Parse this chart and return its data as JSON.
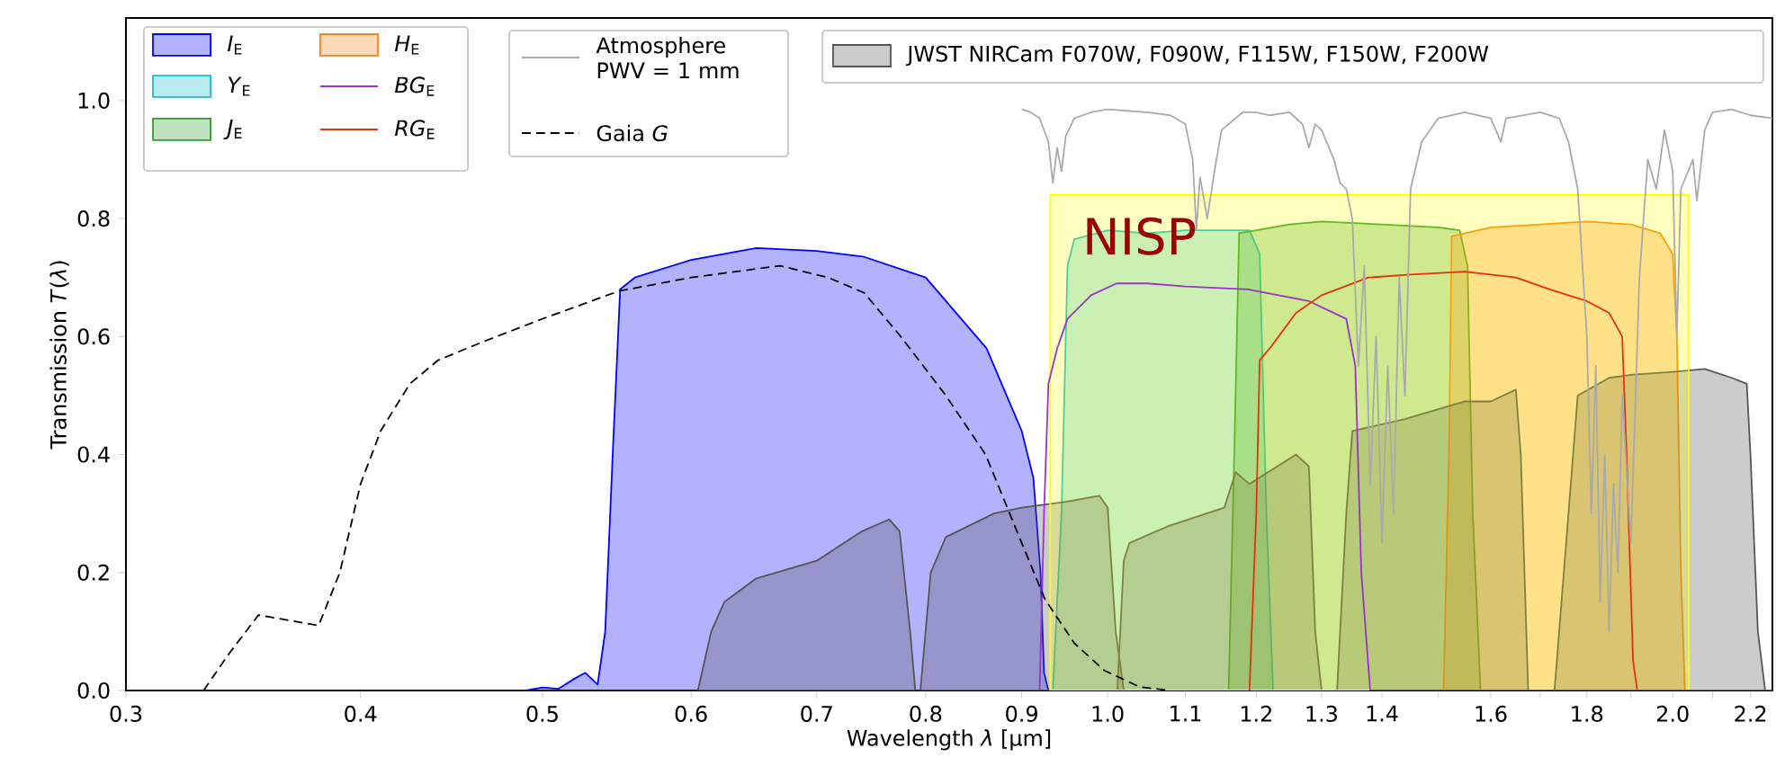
{
  "chart_data": {
    "type": "line",
    "xlabel": "Wavelength  *λ* [μm]",
    "ylabel": "Transmission  *T*(*λ*)",
    "log": "x",
    "legend": "top",
    "xlim": [
      0.3,
      2.26
    ],
    "ylim": [
      0,
      1.14
    ],
    "xticks": [
      0.3,
      0.4,
      0.5,
      0.6,
      0.7,
      0.8,
      0.9,
      {
        "value": 1.0,
        "label": "1.0"
      },
      1.1,
      1.2,
      1.3,
      1.4,
      {
        "value": 1.5,
        "label": null
      },
      1.6,
      {
        "value": 1.7,
        "label": null
      },
      1.8,
      {
        "value": 1.9,
        "label": null
      },
      {
        "value": 2.0,
        "label": "2.0"
      },
      {
        "value": 2.1,
        "label": null
      },
      2.2
    ],
    "yticks": [
      {
        "value": 0.0,
        "label": "0.0"
      },
      0.2,
      0.4,
      0.6,
      0.8,
      {
        "value": 1.0,
        "label": "1.0"
      }
    ],
    "annotations": [
      {
        "text": "NISP",
        "x": 1.04,
        "y": 0.77
      }
    ],
    "series": [
      {
        "name": "*I*$_{E}$",
        "type": "area",
        "color": "#0000ff",
        "x": [
          0.3,
          0.49,
          0.5,
          0.51,
          0.52,
          0.527,
          0.535,
          0.54,
          0.545,
          0.55,
          0.56,
          0.6,
          0.65,
          0.7,
          0.742,
          0.8,
          0.862,
          0.9,
          0.913,
          0.921,
          0.925,
          0.93
        ],
        "values": [
          0,
          0,
          0.005,
          0.003,
          0.02,
          0.03,
          0.01,
          0.1,
          0.4,
          0.68,
          0.7,
          0.73,
          0.75,
          0.745,
          0.735,
          0.7,
          0.58,
          0.44,
          0.36,
          0.2,
          0.03,
          0
        ]
      },
      {
        "name": "*Y*$_{E}$",
        "type": "area",
        "color": "#17becf",
        "x": [
          0.935,
          0.945,
          0.952,
          0.96,
          1.0,
          1.05,
          1.1,
          1.15,
          1.19,
          1.205,
          1.215,
          1.225
        ],
        "values": [
          0,
          0.3,
          0.72,
          0.765,
          0.78,
          0.775,
          0.78,
          0.78,
          0.78,
          0.74,
          0.3,
          0
        ]
      },
      {
        "name": "*J*$_{E}$",
        "type": "area",
        "color": "#2ca02c",
        "x": [
          1.16,
          1.168,
          1.175,
          1.2,
          1.25,
          1.3,
          1.4,
          1.5,
          1.54,
          1.555,
          1.565,
          1.58
        ],
        "values": [
          0,
          0.4,
          0.775,
          0.78,
          0.79,
          0.795,
          0.79,
          0.785,
          0.78,
          0.72,
          0.3,
          0
        ]
      },
      {
        "name": "*H*$_{E}$",
        "type": "area",
        "color": "#ff7f0e",
        "x": [
          1.51,
          1.52,
          1.525,
          1.6,
          1.7,
          1.8,
          1.9,
          1.97,
          2.0,
          2.01,
          2.02,
          2.03
        ],
        "values": [
          0,
          0.4,
          0.77,
          0.785,
          0.79,
          0.795,
          0.79,
          0.775,
          0.74,
          0.6,
          0.2,
          0
        ]
      },
      {
        "name": "*BG*$_{E}$",
        "color": "#9933cc",
        "x": [
          0.9,
          0.92,
          0.925,
          0.93,
          0.94,
          0.952,
          0.98,
          1.011,
          1.05,
          1.1,
          1.188,
          1.28,
          1.34,
          1.355,
          1.365,
          1.38,
          2.26
        ],
        "values": [
          0,
          0,
          0.3,
          0.52,
          0.58,
          0.63,
          0.67,
          0.69,
          0.69,
          0.685,
          0.68,
          0.66,
          0.63,
          0.55,
          0.2,
          0,
          0
        ]
      },
      {
        "name": "*RG*$_{E}$",
        "color": "#e8300a",
        "x": [
          1.19,
          1.2,
          1.205,
          1.22,
          1.26,
          1.3,
          1.377,
          1.45,
          1.55,
          1.65,
          1.72,
          1.8,
          1.85,
          1.88,
          1.89,
          1.905,
          1.915
        ],
        "values": [
          0,
          0.3,
          0.56,
          0.58,
          0.64,
          0.67,
          0.7,
          0.705,
          0.71,
          0.7,
          0.68,
          0.66,
          0.64,
          0.6,
          0.4,
          0.05,
          0
        ]
      },
      {
        "name": "Atmosphere PWV = 1 mm",
        "color": "#aaaaaa",
        "x": [
          0.9,
          0.91,
          0.92,
          0.93,
          0.935,
          0.94,
          0.945,
          0.95,
          0.96,
          0.98,
          1.0,
          1.05,
          1.08,
          1.1,
          1.11,
          1.115,
          1.12,
          1.13,
          1.14,
          1.15,
          1.18,
          1.2,
          1.22,
          1.25,
          1.27,
          1.28,
          1.29,
          1.3,
          1.32,
          1.33,
          1.34,
          1.35,
          1.36,
          1.37,
          1.38,
          1.39,
          1.4,
          1.41,
          1.42,
          1.43,
          1.44,
          1.45,
          1.47,
          1.5,
          1.55,
          1.6,
          1.62,
          1.63,
          1.7,
          1.74,
          1.76,
          1.78,
          1.8,
          1.81,
          1.82,
          1.83,
          1.84,
          1.85,
          1.86,
          1.87,
          1.88,
          1.9,
          1.92,
          1.94,
          1.96,
          1.98,
          2.0,
          2.01,
          2.02,
          2.05,
          2.06,
          2.08,
          2.1,
          2.15,
          2.2,
          2.26
        ],
        "values": [
          0.985,
          0.98,
          0.97,
          0.93,
          0.86,
          0.92,
          0.88,
          0.94,
          0.97,
          0.98,
          0.985,
          0.98,
          0.975,
          0.96,
          0.9,
          0.78,
          0.87,
          0.8,
          0.88,
          0.95,
          0.98,
          0.98,
          0.975,
          0.98,
          0.96,
          0.92,
          0.96,
          0.95,
          0.9,
          0.86,
          0.85,
          0.8,
          0.55,
          0.72,
          0.35,
          0.6,
          0.25,
          0.55,
          0.3,
          0.7,
          0.5,
          0.85,
          0.93,
          0.97,
          0.98,
          0.97,
          0.93,
          0.97,
          0.98,
          0.97,
          0.93,
          0.85,
          0.6,
          0.3,
          0.55,
          0.15,
          0.4,
          0.1,
          0.35,
          0.2,
          0.5,
          0.25,
          0.7,
          0.9,
          0.85,
          0.95,
          0.88,
          0.6,
          0.85,
          0.9,
          0.83,
          0.95,
          0.98,
          0.985,
          0.975,
          0.97
        ]
      },
      {
        "name": "Gaia *G*",
        "line_style": "dashed",
        "color": "#000000",
        "x": [
          0.33,
          0.34,
          0.353,
          0.365,
          0.38,
          0.39,
          0.4,
          0.41,
          0.425,
          0.44,
          0.464,
          0.5,
          0.549,
          0.6,
          0.669,
          0.71,
          0.742,
          0.776,
          0.82,
          0.861,
          0.9,
          0.926,
          0.96,
          0.996,
          1.04,
          1.08
        ],
        "values": [
          0,
          0.06,
          0.128,
          0.12,
          0.11,
          0.2,
          0.35,
          0.44,
          0.52,
          0.56,
          0.59,
          0.63,
          0.677,
          0.7,
          0.72,
          0.7,
          0.674,
          0.6,
          0.5,
          0.4,
          0.25,
          0.155,
          0.08,
          0.034,
          0.006,
          0
        ]
      },
      {
        "name": "JWST NIRCam F070W, F090W, F115W, F150W, F200W",
        "type": "area",
        "color": "#555555",
        "x": [
          0.605,
          0.615,
          0.625,
          0.65,
          0.7,
          0.74,
          0.765,
          0.775,
          0.785,
          0.79
        ],
        "values": [
          0,
          0.1,
          0.15,
          0.19,
          0.22,
          0.27,
          0.29,
          0.27,
          0.1,
          0
        ]
      },
      {
        "type": "area",
        "color": "#555555",
        "x": [
          0.795,
          0.805,
          0.82,
          0.87,
          0.9,
          0.95,
          0.99,
          1.0,
          1.01,
          1.02
        ],
        "values": [
          0,
          0.2,
          0.26,
          0.3,
          0.31,
          0.32,
          0.33,
          0.31,
          0.1,
          0
        ]
      },
      {
        "type": "area",
        "color": "#555555",
        "x": [
          1.012,
          1.02,
          1.027,
          1.08,
          1.154,
          1.17,
          1.19,
          1.26,
          1.28,
          1.29,
          1.3
        ],
        "values": [
          0,
          0.22,
          0.25,
          0.28,
          0.31,
          0.37,
          0.35,
          0.4,
          0.38,
          0.1,
          0
        ]
      },
      {
        "type": "area",
        "color": "#555555",
        "x": [
          1.325,
          1.34,
          1.35,
          1.44,
          1.55,
          1.6,
          1.65,
          1.66,
          1.675
        ],
        "values": [
          0,
          0.3,
          0.44,
          0.46,
          0.49,
          0.49,
          0.51,
          0.4,
          0
        ]
      },
      {
        "type": "area",
        "color": "#555555",
        "x": [
          1.73,
          1.76,
          1.78,
          1.85,
          1.9,
          2.0,
          2.08,
          2.15,
          2.19,
          2.2,
          2.22,
          2.24
        ],
        "values": [
          0,
          0.3,
          0.5,
          0.53,
          0.535,
          0.54,
          0.545,
          0.53,
          0.52,
          0.4,
          0.1,
          0
        ]
      },
      {
        "type": "area",
        "color": "#ffff00",
        "x": [
          0.932,
          2.04
        ],
        "values": [
          0.84,
          0.84
        ]
      }
    ]
  }
}
